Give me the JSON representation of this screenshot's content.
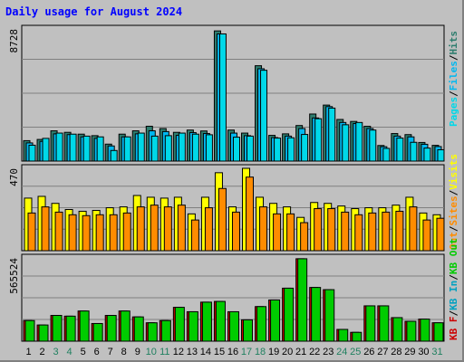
{
  "title": "Daily usage for August 2024",
  "colors": {
    "hits": "#2e7d6e",
    "files": "#00b8f0",
    "pages": "#00d8e8",
    "visits": "#ffff00",
    "sites": "#ff8c00",
    "kbin": "#00a0c0",
    "kbout": "#00cc00",
    "kbf": "#cc0000",
    "weekday_label": "#000000",
    "weekend_label": "#208060"
  },
  "chart_data": [
    {
      "type": "bar",
      "panel": "top",
      "ymax_label": "8728",
      "ylim": [
        0,
        8728
      ],
      "categories": [
        "1",
        "2",
        "3",
        "4",
        "5",
        "6",
        "7",
        "8",
        "9",
        "10",
        "11",
        "12",
        "13",
        "14",
        "15",
        "16",
        "17",
        "18",
        "19",
        "20",
        "21",
        "22",
        "23",
        "24",
        "25",
        "26",
        "27",
        "28",
        "29",
        "30",
        "31"
      ],
      "weekend_days": [
        3,
        4,
        10,
        11,
        17,
        18,
        24,
        25,
        31
      ],
      "legend": [
        "Pages",
        "Files",
        "Hits"
      ],
      "series": [
        {
          "name": "Hits",
          "values": [
            1350,
            1430,
            2000,
            1900,
            1780,
            1680,
            1120,
            1780,
            2000,
            2300,
            2150,
            1900,
            2050,
            1990,
            8600,
            2050,
            1850,
            6300,
            1700,
            1800,
            2350,
            3110,
            3700,
            2750,
            2620,
            2300,
            1030,
            1820,
            1750,
            1230,
            1040
          ]
        },
        {
          "name": "Files",
          "values": [
            1200,
            1300,
            1800,
            1750,
            1600,
            1500,
            1000,
            1600,
            1800,
            2000,
            1950,
            1700,
            1880,
            1820,
            8400,
            1850,
            1680,
            6100,
            1550,
            1650,
            2150,
            2850,
            3600,
            2550,
            2480,
            2150,
            950,
            1650,
            1600,
            1110,
            960
          ]
        },
        {
          "name": "Pages",
          "values": [
            1050,
            1500,
            1850,
            1780,
            1650,
            1600,
            700,
            1600,
            1850,
            1650,
            1680,
            1850,
            1780,
            1740,
            8400,
            1580,
            1650,
            6000,
            1520,
            1540,
            1760,
            2800,
            3500,
            2400,
            2550,
            2050,
            840,
            1520,
            1240,
            860,
            750
          ]
        }
      ]
    },
    {
      "type": "bar",
      "panel": "middle",
      "ymax_label": "470",
      "ylim": [
        0,
        470
      ],
      "categories": [
        "1",
        "2",
        "3",
        "4",
        "5",
        "6",
        "7",
        "8",
        "9",
        "10",
        "11",
        "12",
        "13",
        "14",
        "15",
        "16",
        "17",
        "18",
        "19",
        "20",
        "21",
        "22",
        "23",
        "24",
        "25",
        "26",
        "27",
        "28",
        "29",
        "30",
        "31"
      ],
      "legend": [
        "Visits",
        "Sites",
        "Out"
      ],
      "series": [
        {
          "name": "Visits",
          "values": [
            300,
            310,
            270,
            235,
            225,
            230,
            245,
            250,
            315,
            305,
            300,
            305,
            210,
            305,
            445,
            250,
            470,
            305,
            270,
            250,
            190,
            275,
            270,
            255,
            240,
            245,
            245,
            260,
            305,
            215,
            205
          ]
        },
        {
          "name": "Sites",
          "values": [
            215,
            250,
            220,
            205,
            200,
            205,
            205,
            215,
            250,
            260,
            250,
            260,
            175,
            245,
            355,
            220,
            420,
            250,
            210,
            210,
            160,
            240,
            240,
            220,
            205,
            215,
            220,
            225,
            250,
            175,
            185
          ]
        }
      ]
    },
    {
      "type": "bar",
      "panel": "bottom",
      "ymax_label": "565524",
      "ylim": [
        0,
        565524
      ],
      "categories": [
        "1",
        "2",
        "3",
        "4",
        "5",
        "6",
        "7",
        "8",
        "9",
        "10",
        "11",
        "12",
        "13",
        "14",
        "15",
        "16",
        "17",
        "18",
        "19",
        "20",
        "21",
        "22",
        "23",
        "24",
        "25",
        "26",
        "27",
        "28",
        "29",
        "30",
        "31"
      ],
      "legend": [
        "KB F",
        "KB In",
        "KB Out"
      ],
      "series": [
        {
          "name": "KB F",
          "values": [
            140000,
            110000,
            175000,
            170000,
            205000,
            120000,
            175000,
            205000,
            165000,
            125000,
            140000,
            230000,
            200000,
            265000,
            270000,
            200000,
            145000,
            235000,
            280000,
            360000,
            560000,
            365000,
            350000,
            80000,
            60000,
            240000,
            240000,
            160000,
            135000,
            150000,
            125000
          ]
        },
        {
          "name": "KB In",
          "values": [
            140000,
            110000,
            175000,
            170000,
            205000,
            120000,
            175000,
            205000,
            165000,
            125000,
            140000,
            230000,
            200000,
            265000,
            270000,
            200000,
            145000,
            235000,
            280000,
            360000,
            560000,
            365000,
            350000,
            80000,
            60000,
            240000,
            240000,
            160000,
            135000,
            150000,
            125000
          ]
        }
      ]
    }
  ],
  "xlabels": [
    "1",
    "2",
    "3",
    "4",
    "5",
    "6",
    "7",
    "8",
    "9",
    "10",
    "11",
    "12",
    "13",
    "14",
    "15",
    "16",
    "17",
    "18",
    "19",
    "20",
    "21",
    "22",
    "23",
    "24",
    "25",
    "26",
    "27",
    "28",
    "29",
    "30",
    "31"
  ]
}
